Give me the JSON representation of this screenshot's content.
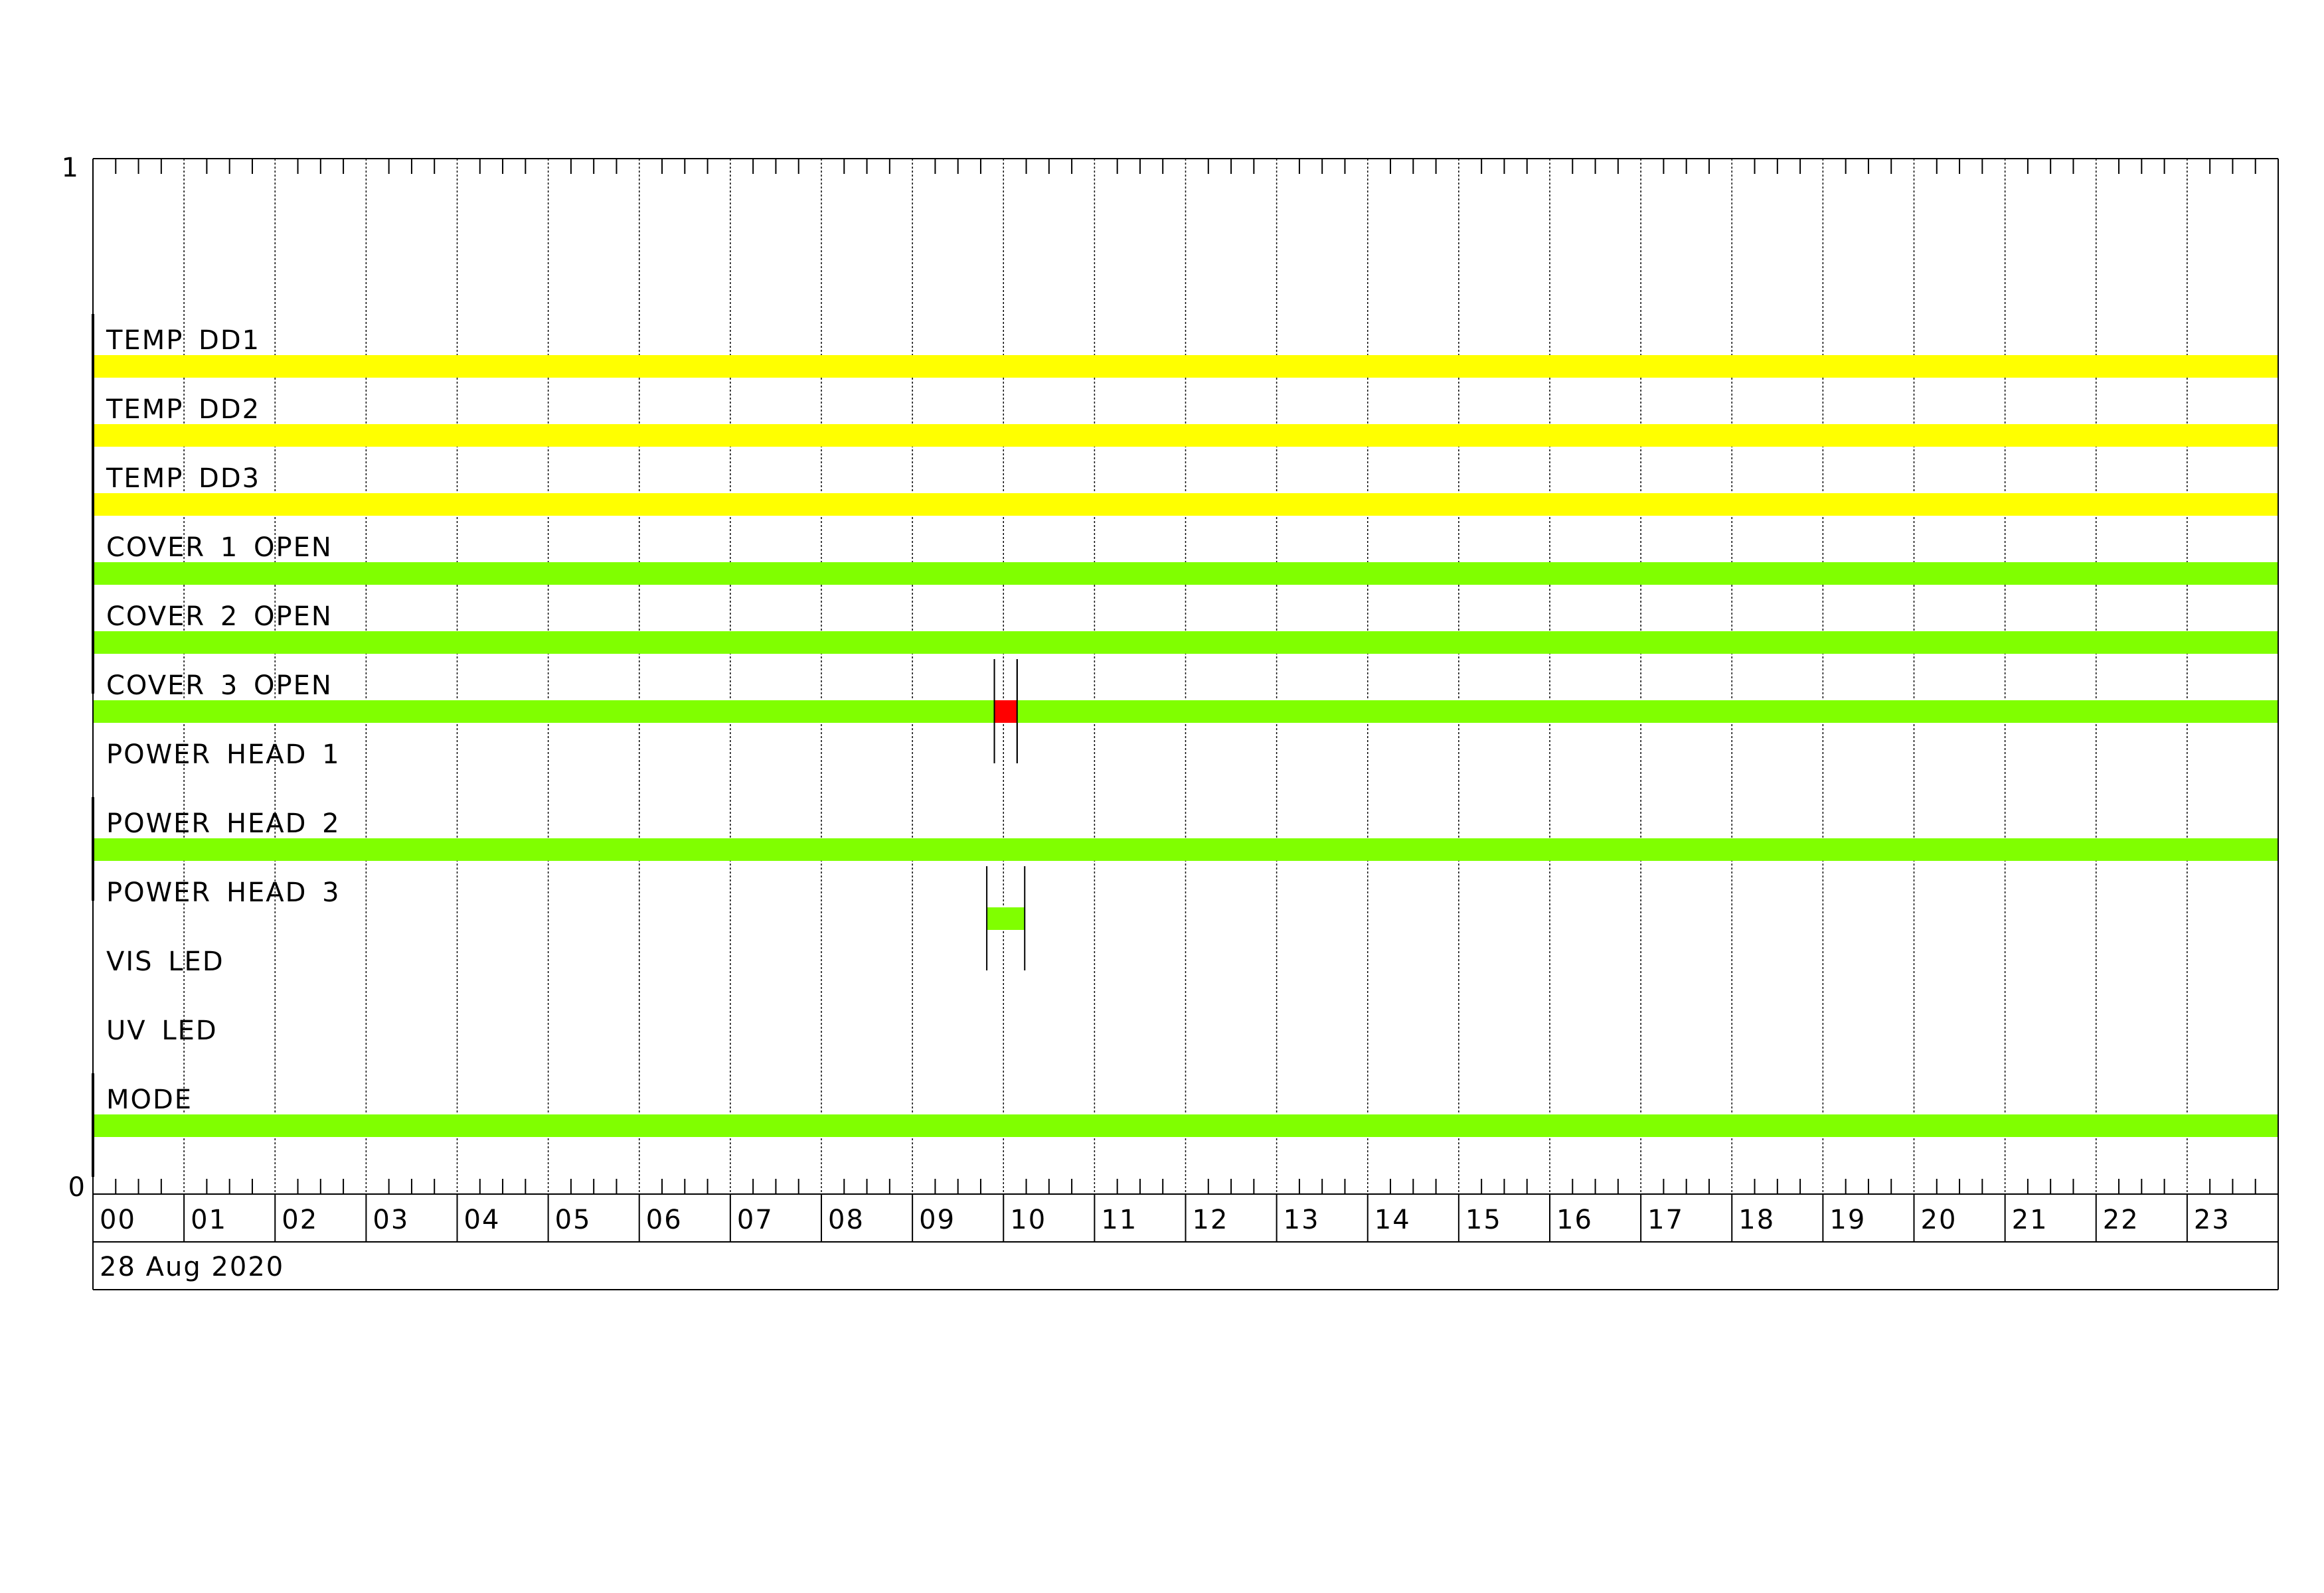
{
  "chart_data": {
    "type": "timeline",
    "date_label": "28 Aug 2020",
    "x_unit": "hour",
    "xlim": [
      0,
      24
    ],
    "x_tick_labels": [
      "00",
      "01",
      "02",
      "03",
      "04",
      "05",
      "06",
      "07",
      "08",
      "09",
      "10",
      "11",
      "12",
      "13",
      "14",
      "15",
      "16",
      "17",
      "18",
      "19",
      "20",
      "21",
      "22",
      "23"
    ],
    "minor_tick_interval_minutes": 15,
    "y_tick_labels": {
      "top": "1",
      "bottom": "0"
    },
    "grid": true,
    "colors": {
      "yellow": "#ffff00",
      "green": "#80ff00",
      "red": "#ff0000"
    },
    "rows": [
      {
        "label": "TEMP DD1",
        "segments": [
          {
            "start": "00:00",
            "end": "24:00",
            "color": "#ffff00"
          }
        ]
      },
      {
        "label": "TEMP DD2",
        "segments": [
          {
            "start": "00:00",
            "end": "24:00",
            "color": "#ffff00"
          }
        ]
      },
      {
        "label": "TEMP DD3",
        "segments": [
          {
            "start": "00:00",
            "end": "24:00",
            "color": "#ffff00"
          }
        ]
      },
      {
        "label": "COVER 1 OPEN",
        "segments": [
          {
            "start": "00:00",
            "end": "24:00",
            "color": "#80ff00"
          }
        ]
      },
      {
        "label": "COVER 2 OPEN",
        "segments": [
          {
            "start": "00:00",
            "end": "24:00",
            "color": "#80ff00"
          }
        ]
      },
      {
        "label": "COVER 3 OPEN",
        "segments": [
          {
            "start": "00:00",
            "end": "09:54",
            "color": "#80ff00"
          },
          {
            "start": "09:54",
            "end": "10:09",
            "color": "#ff0000"
          },
          {
            "start": "10:09",
            "end": "24:00",
            "color": "#80ff00"
          }
        ]
      },
      {
        "label": "POWER HEAD 1",
        "segments": []
      },
      {
        "label": "POWER HEAD 2",
        "segments": [
          {
            "start": "00:00",
            "end": "24:00",
            "color": "#80ff00"
          }
        ]
      },
      {
        "label": "POWER HEAD 3",
        "segments": [
          {
            "start": "09:49",
            "end": "10:14",
            "color": "#80ff00"
          }
        ]
      },
      {
        "label": "VIS LED",
        "segments": []
      },
      {
        "label": "UV LED",
        "segments": []
      },
      {
        "label": "MODE",
        "segments": [
          {
            "start": "00:00",
            "end": "24:00",
            "color": "#80ff00"
          }
        ]
      }
    ]
  }
}
